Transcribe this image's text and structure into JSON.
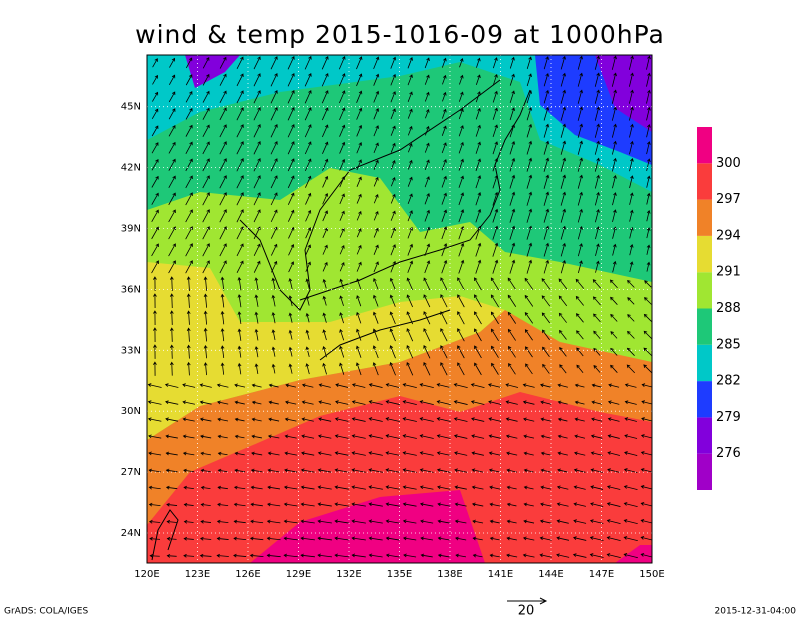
{
  "title": "wind & temp 2015-1016-09 at 1000hPa",
  "lat_labels": [
    "24N",
    "27N",
    "30N",
    "33N",
    "36N",
    "39N",
    "42N",
    "45N"
  ],
  "lon_labels": [
    "120E",
    "123E",
    "126E",
    "129E",
    "132E",
    "135E",
    "138E",
    "141E",
    "144E",
    "147E",
    "150E"
  ],
  "colorbar": {
    "levels": [
      276,
      279,
      282,
      285,
      288,
      291,
      294,
      297,
      300
    ],
    "colors": [
      "#a000c8",
      "#8200dc",
      "#1e3cff",
      "#00c8c8",
      "#1ec878",
      "#a0e632",
      "#e6dc32",
      "#f08228",
      "#fa3c3c",
      "#f00082"
    ]
  },
  "reference_vector": 20,
  "footer_left": "GrADS: COLA/IGES",
  "footer_right": "2015-12-31-04:00"
}
